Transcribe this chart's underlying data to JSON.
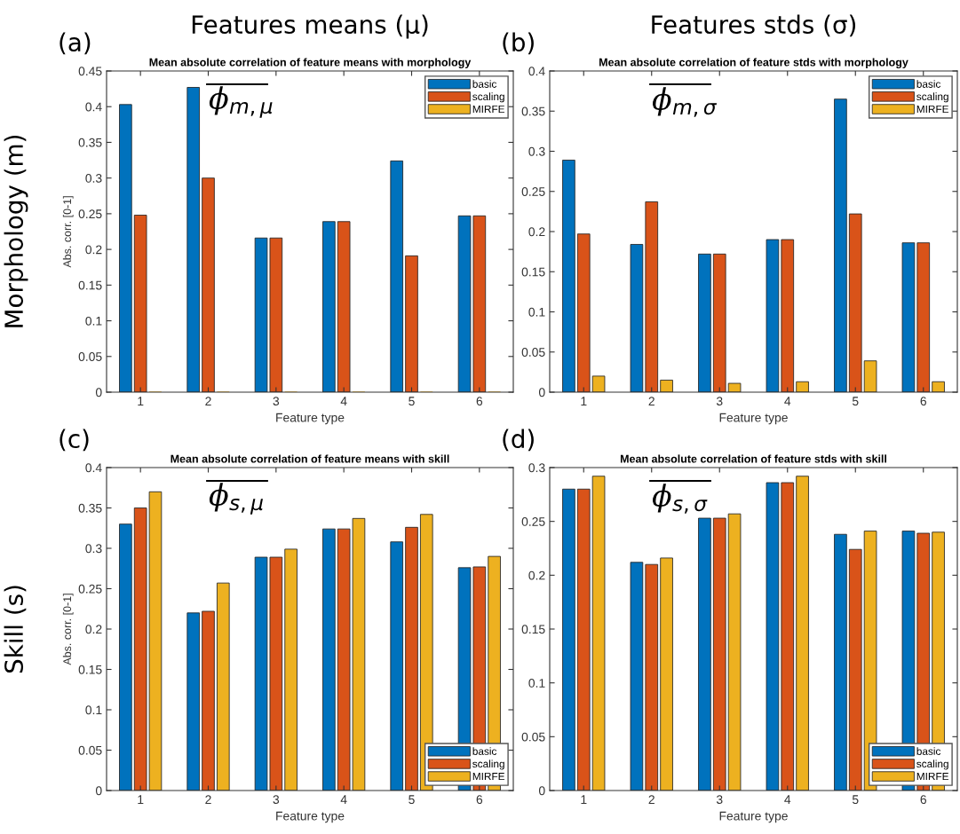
{
  "chart_data": [
    {
      "type": "bar",
      "title": "Mean absolute correlation of feature means with morphology",
      "xlabel": "Feature type",
      "ylabel": "Abs. corr. [0-1]",
      "categories": [
        "1",
        "2",
        "3",
        "4",
        "5",
        "6"
      ],
      "ylim": [
        0,
        0.45
      ],
      "yticks": [
        0,
        0.05,
        0.1,
        0.15,
        0.2,
        0.25,
        0.3,
        0.35,
        0.4,
        0.45
      ],
      "legend": "top right",
      "grid": false,
      "annotations": [
        "(a)",
        "ϕ$_{m,μ}$",
        "Features means (μ)",
        "Morphology (m)"
      ],
      "series": [
        {
          "name": "basic",
          "color": "#0072bd",
          "values": [
            0.403,
            0.427,
            0.216,
            0.239,
            0.324,
            0.247
          ]
        },
        {
          "name": "scaling",
          "color": "#d95319",
          "values": [
            0.248,
            0.3,
            0.216,
            0.239,
            0.191,
            0.247
          ]
        },
        {
          "name": "MIRFE",
          "color": "#edb120",
          "values": [
            0,
            0,
            0,
            0,
            0,
            0
          ]
        }
      ]
    },
    {
      "type": "bar",
      "title": "Mean absolute correlation of feature stds with morphology",
      "xlabel": "Feature type",
      "categories": [
        "1",
        "2",
        "3",
        "4",
        "5",
        "6"
      ],
      "ylim": [
        0,
        0.4
      ],
      "yticks": [
        0,
        0.05,
        0.1,
        0.15,
        0.2,
        0.25,
        0.3,
        0.35,
        0.4
      ],
      "legend": "top right",
      "grid": false,
      "annotations": [
        "(b)",
        "ϕ$_{m,σ}$",
        "Features stds (σ)"
      ],
      "series": [
        {
          "name": "basic",
          "color": "#0072bd",
          "values": [
            0.289,
            0.184,
            0.172,
            0.19,
            0.365,
            0.186
          ]
        },
        {
          "name": "scaling",
          "color": "#d95319",
          "values": [
            0.197,
            0.237,
            0.172,
            0.19,
            0.222,
            0.186
          ]
        },
        {
          "name": "MIRFE",
          "color": "#edb120",
          "values": [
            0.02,
            0.015,
            0.011,
            0.013,
            0.039,
            0.013
          ]
        }
      ]
    },
    {
      "type": "bar",
      "title": "Mean absolute correlation of feature means with skill",
      "xlabel": "Feature type",
      "ylabel": "Abs. corr. [0-1]",
      "categories": [
        "1",
        "2",
        "3",
        "4",
        "5",
        "6"
      ],
      "ylim": [
        0,
        0.4
      ],
      "yticks": [
        0,
        0.05,
        0.1,
        0.15,
        0.2,
        0.25,
        0.3,
        0.35,
        0.4
      ],
      "legend": "bottom right",
      "grid": false,
      "annotations": [
        "(c)",
        "ϕ$_{s,μ}$",
        "Skill (s)"
      ],
      "series": [
        {
          "name": "basic",
          "color": "#0072bd",
          "values": [
            0.33,
            0.22,
            0.289,
            0.324,
            0.308,
            0.276
          ]
        },
        {
          "name": "scaling",
          "color": "#d95319",
          "values": [
            0.35,
            0.222,
            0.289,
            0.324,
            0.326,
            0.277
          ]
        },
        {
          "name": "MIRFE",
          "color": "#edb120",
          "values": [
            0.37,
            0.257,
            0.299,
            0.337,
            0.342,
            0.29
          ]
        }
      ]
    },
    {
      "type": "bar",
      "title": "Mean absolute correlation of feature stds with skill",
      "xlabel": "Feature type",
      "categories": [
        "1",
        "2",
        "3",
        "4",
        "5",
        "6"
      ],
      "ylim": [
        0,
        0.3
      ],
      "yticks": [
        0,
        0.05,
        0.1,
        0.15,
        0.2,
        0.25,
        0.3
      ],
      "legend": "bottom right",
      "grid": false,
      "annotations": [
        "(d)",
        "ϕ$_{s,σ}$"
      ],
      "series": [
        {
          "name": "basic",
          "color": "#0072bd",
          "values": [
            0.28,
            0.212,
            0.253,
            0.286,
            0.238,
            0.241
          ]
        },
        {
          "name": "scaling",
          "color": "#d95319",
          "values": [
            0.28,
            0.21,
            0.253,
            0.286,
            0.224,
            0.239
          ]
        },
        {
          "name": "MIRFE",
          "color": "#edb120",
          "values": [
            0.292,
            0.216,
            0.257,
            0.292,
            0.241,
            0.24
          ]
        }
      ]
    }
  ]
}
